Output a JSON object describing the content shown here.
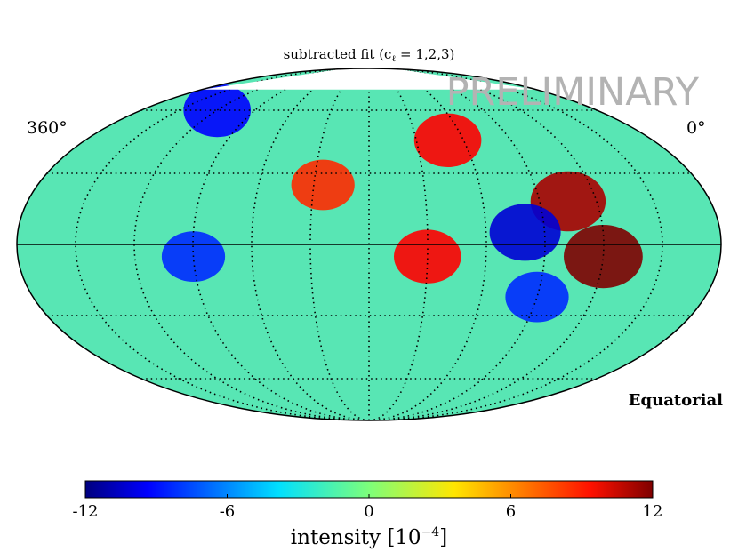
{
  "chart_data": {
    "type": "heatmap",
    "projection": "mollweide",
    "title": "subtracted fit (c",
    "title_sub": "ℓ",
    "title_end": " = 1,2,3)",
    "watermark": "PRELIMINARY",
    "coordinate_system": "Equatorial",
    "lon_label_left": "360°",
    "lon_label_right": "0°",
    "colorbar": {
      "label_main": "intensity [10",
      "label_exp": "−4",
      "label_end": "]",
      "range": [
        -12,
        12
      ],
      "ticks": [
        "-12",
        "-6",
        "0",
        "6",
        "12"
      ],
      "tick_values": [
        -12,
        -6,
        0,
        6,
        12
      ],
      "colormap": "jet"
    },
    "graticule": {
      "meridian_spacing_deg": 30,
      "parallel_spacing_deg": 30,
      "style": "dotted"
    },
    "masked_region": "northern cap above dec ≈ 70°",
    "features": [
      {
        "name": "strong excess",
        "ra_deg": 60,
        "dec_deg": -5,
        "value": 12
      },
      {
        "name": "excess",
        "ra_deg": 75,
        "dec_deg": 18,
        "value": 11
      },
      {
        "name": "excess",
        "ra_deg": 130,
        "dec_deg": 45,
        "value": 9
      },
      {
        "name": "excess",
        "ra_deg": 150,
        "dec_deg": -5,
        "value": 9
      },
      {
        "name": "excess",
        "ra_deg": 205,
        "dec_deg": 25,
        "value": 8
      },
      {
        "name": "deficit",
        "ra_deg": 100,
        "dec_deg": 5,
        "value": -10
      },
      {
        "name": "deficit",
        "ra_deg": 90,
        "dec_deg": -22,
        "value": -8
      },
      {
        "name": "deficit",
        "ra_deg": 270,
        "dec_deg": -5,
        "value": -8
      },
      {
        "name": "deficit",
        "ra_deg": 300,
        "dec_deg": 60,
        "value": -9
      }
    ]
  }
}
